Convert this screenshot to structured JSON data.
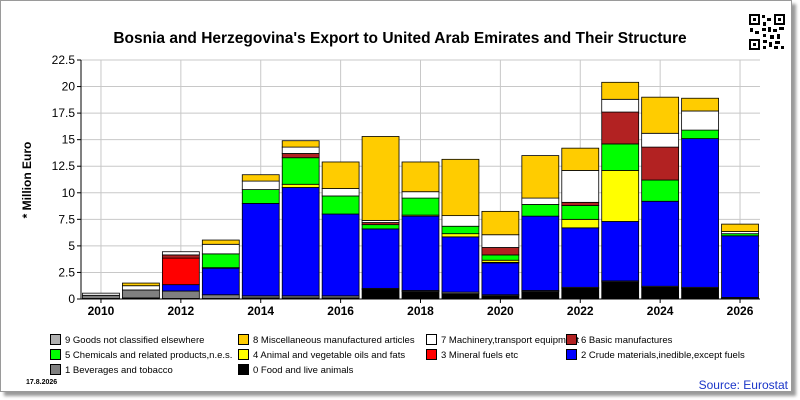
{
  "chart_data": {
    "type": "stacked-bar",
    "title": "Bosnia and Herzegovina's Export to United Arab Emirates and Their Structure",
    "ylabel": "* Million Euro",
    "ylim": [
      0,
      22.5
    ],
    "yticks": [
      "0",
      "2.5",
      "5",
      "7.5",
      "10",
      "12.5",
      "15",
      "17.5",
      "20",
      "22.5"
    ],
    "xtick_labels": [
      "2010",
      "2012",
      "2014",
      "2016",
      "2018",
      "2020",
      "2022",
      "2024",
      "2026"
    ],
    "years": [
      2010,
      2011,
      2012,
      2013,
      2014,
      2015,
      2016,
      2017,
      2018,
      2019,
      2020,
      2021,
      2022,
      2023,
      2024,
      2025,
      2026
    ],
    "grid": true,
    "legend_placement": "bottom",
    "series": [
      {
        "code": "0",
        "name": "Food and live animals",
        "color": "#000000",
        "values": [
          0.05,
          0.1,
          0.05,
          0.05,
          0.1,
          0.1,
          0.1,
          0.9,
          0.7,
          0.5,
          0.3,
          0.7,
          1.0,
          1.6,
          1.1,
          1.0,
          0.05
        ]
      },
      {
        "code": "1",
        "name": "Beverages and tobacco",
        "color": "#808080",
        "values": [
          0.3,
          0.75,
          0.7,
          0.35,
          0.2,
          0.2,
          0.2,
          0.1,
          0.1,
          0.15,
          0.1,
          0.1,
          0.1,
          0.1,
          0.1,
          0.1,
          0.1
        ]
      },
      {
        "code": "2",
        "name": "Crude materials,inedible,except fuels",
        "color": "#0000ff",
        "values": [
          0.0,
          0.0,
          0.6,
          2.5,
          8.7,
          10.2,
          7.7,
          5.6,
          7.0,
          5.2,
          3.0,
          7.0,
          5.6,
          5.6,
          8.0,
          14.0,
          5.8
        ]
      },
      {
        "code": "3",
        "name": "Mineral fuels etc",
        "color": "#ff0000",
        "values": [
          0.0,
          0.0,
          2.5,
          0.05,
          0.0,
          0.0,
          0.0,
          0.0,
          0.0,
          0.0,
          0.05,
          0.0,
          0.0,
          0.0,
          0.0,
          0.0,
          0.0
        ]
      },
      {
        "code": "4",
        "name": "Animal and vegetable oils and fats",
        "color": "#ffff00",
        "values": [
          0.0,
          0.0,
          0.0,
          0.0,
          0.0,
          0.3,
          0.0,
          0.0,
          0.1,
          0.3,
          0.2,
          0.0,
          0.8,
          4.8,
          0.0,
          0.0,
          0.0
        ]
      },
      {
        "code": "5",
        "name": "Chemicals and related products,n.e.s.",
        "color": "#00ff00",
        "values": [
          0.0,
          0.0,
          0.0,
          1.3,
          1.3,
          2.5,
          1.7,
          0.4,
          1.6,
          0.7,
          0.5,
          1.1,
          1.3,
          2.5,
          2.0,
          0.8,
          0.2
        ]
      },
      {
        "code": "6",
        "name": "Basic manufactures",
        "color": "#b22222",
        "values": [
          0.0,
          0.0,
          0.3,
          0.0,
          0.0,
          0.4,
          0.0,
          0.2,
          0.0,
          0.0,
          0.7,
          0.0,
          0.3,
          3.0,
          3.1,
          0.0,
          0.0
        ]
      },
      {
        "code": "7",
        "name": "Machinery,transport equipment",
        "color": "#ffffff",
        "values": [
          0.2,
          0.4,
          0.3,
          0.9,
          0.8,
          0.6,
          0.7,
          0.2,
          0.6,
          1.0,
          1.2,
          0.6,
          3.0,
          1.2,
          1.3,
          1.8,
          0.2
        ]
      },
      {
        "code": "8",
        "name": "Miscellaneous manufactured articles",
        "color": "#ffcc00",
        "values": [
          0.0,
          0.25,
          0.0,
          0.4,
          0.6,
          0.6,
          2.5,
          7.9,
          2.8,
          5.3,
          2.2,
          4.0,
          2.1,
          1.6,
          3.4,
          1.2,
          0.7
        ]
      },
      {
        "code": "9",
        "name": "Goods not classified elsewhere",
        "color": "#b0b0b0",
        "values": [
          0.0,
          0.0,
          0.0,
          0.0,
          0.0,
          0.0,
          0.0,
          0.0,
          0.0,
          0.0,
          0.0,
          0.0,
          0.0,
          0.0,
          0.0,
          0.0,
          0.0
        ]
      }
    ]
  },
  "legend": [
    {
      "label": "9 Goods not classified elsewhere",
      "color": "#b0b0b0"
    },
    {
      "label": "8 Miscellaneous manufactured articles",
      "color": "#ffcc00"
    },
    {
      "label": "7 Machinery,transport equipment",
      "color": "#ffffff"
    },
    {
      "label": "6 Basic manufactures",
      "color": "#b22222"
    },
    {
      "label": "5 Chemicals and related products,n.e.s.",
      "color": "#00ff00"
    },
    {
      "label": "4 Animal and vegetable oils and fats",
      "color": "#ffff00"
    },
    {
      "label": "3 Mineral fuels etc",
      "color": "#ff0000"
    },
    {
      "label": "2 Crude materials,inedible,except fuels",
      "color": "#0000ff"
    },
    {
      "label": "1 Beverages and tobacco",
      "color": "#808080"
    },
    {
      "label": "0 Food and live animals",
      "color": "#000000"
    }
  ],
  "footer": {
    "date": "17.8.2026",
    "source": "Source: Eurostat"
  },
  "qr_icon": "qr-code-icon"
}
